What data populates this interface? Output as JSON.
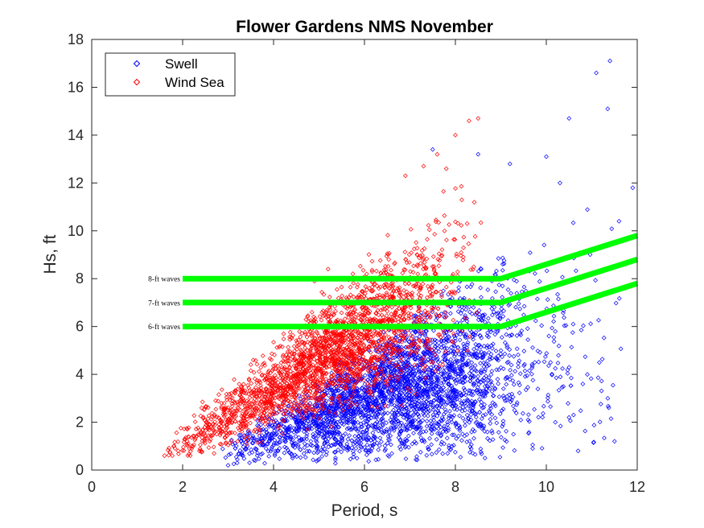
{
  "chart_data": {
    "type": "scatter",
    "title": "Flower Gardens NMS November",
    "xlabel": "Period, s",
    "ylabel": "Hs, ft",
    "xlim": [
      0,
      12
    ],
    "ylim": [
      0,
      18
    ],
    "xticks": [
      "0",
      "2",
      "4",
      "6",
      "8",
      "10",
      "12"
    ],
    "yticks": [
      "0",
      "2",
      "4",
      "6",
      "8",
      "10",
      "12",
      "14",
      "16",
      "18"
    ],
    "grid": false,
    "legend_position": "top-left",
    "legend": [
      {
        "label": "Swell",
        "color": "#0000ff",
        "marker": "diamond"
      },
      {
        "label": "Wind Sea",
        "color": "#ff0000",
        "marker": "diamond"
      }
    ],
    "scatter_series": [
      {
        "name": "Swell",
        "color": "#0000ff",
        "clusters": [
          {
            "x_range": [
              2.8,
              9.5
            ],
            "x_mode": 6.8,
            "y_range": [
              0.2,
              9.5
            ],
            "y_mode": 3.5,
            "approx_count": 2600
          },
          {
            "x_range": [
              6.5,
              12
            ],
            "x_mode": 8.5,
            "y_range": [
              0.5,
              12.5
            ],
            "y_mode": 4,
            "approx_count": 450
          }
        ],
        "points": [
          {
            "x": 11.4,
            "y": 17.1
          },
          {
            "x": 11.1,
            "y": 16.6
          },
          {
            "x": 11.35,
            "y": 15.1
          },
          {
            "x": 10.5,
            "y": 14.7
          },
          {
            "x": 11.9,
            "y": 11.8
          },
          {
            "x": 11.6,
            "y": 10.4
          },
          {
            "x": 10.0,
            "y": 13.1
          },
          {
            "x": 9.2,
            "y": 12.8
          },
          {
            "x": 8.5,
            "y": 13.2
          },
          {
            "x": 7.5,
            "y": 13.4
          },
          {
            "x": 10.3,
            "y": 12.0
          },
          {
            "x": 10.6,
            "y": 2.3
          },
          {
            "x": 10.5,
            "y": 2.2
          },
          {
            "x": 10.2,
            "y": 2.0
          },
          {
            "x": 9.6,
            "y": 2.1
          },
          {
            "x": 9.7,
            "y": 0.9
          },
          {
            "x": 10.7,
            "y": 0.8
          },
          {
            "x": 3.2,
            "y": 0.3
          },
          {
            "x": 3.0,
            "y": 0.2
          },
          {
            "x": 9.3,
            "y": 2.5
          },
          {
            "x": 11.5,
            "y": 1.2
          }
        ]
      },
      {
        "name": "Wind Sea",
        "color": "#ff0000",
        "clusters": [
          {
            "x_range": [
              1.6,
              8.6
            ],
            "x_mode": 5.5,
            "y_range": [
              0.6,
              14.7
            ],
            "y_mode": 4.5,
            "approx_count": 2400
          }
        ],
        "points": [
          {
            "x": 1.6,
            "y": 0.6
          },
          {
            "x": 1.9,
            "y": 0.8
          },
          {
            "x": 2.1,
            "y": 1.2
          },
          {
            "x": 8.0,
            "y": 14.0
          },
          {
            "x": 8.3,
            "y": 14.6
          },
          {
            "x": 8.5,
            "y": 14.7
          },
          {
            "x": 7.6,
            "y": 13.2
          },
          {
            "x": 7.3,
            "y": 12.7
          },
          {
            "x": 6.9,
            "y": 12.3
          },
          {
            "x": 7.8,
            "y": 12.6
          },
          {
            "x": 5.2,
            "y": 8.4
          },
          {
            "x": 4.9,
            "y": 7.9
          }
        ]
      }
    ],
    "threshold_lines": [
      {
        "label": "8-ft waves",
        "color": "#00ff00",
        "points": [
          [
            2,
            8
          ],
          [
            9,
            8
          ],
          [
            12,
            9.8
          ]
        ]
      },
      {
        "label": "7-ft waves",
        "color": "#00ff00",
        "points": [
          [
            2,
            7
          ],
          [
            9,
            7
          ],
          [
            12,
            8.8
          ]
        ]
      },
      {
        "label": "6-ft waves",
        "color": "#00ff00",
        "points": [
          [
            2,
            6
          ],
          [
            9,
            6
          ],
          [
            12,
            7.8
          ]
        ]
      }
    ]
  }
}
